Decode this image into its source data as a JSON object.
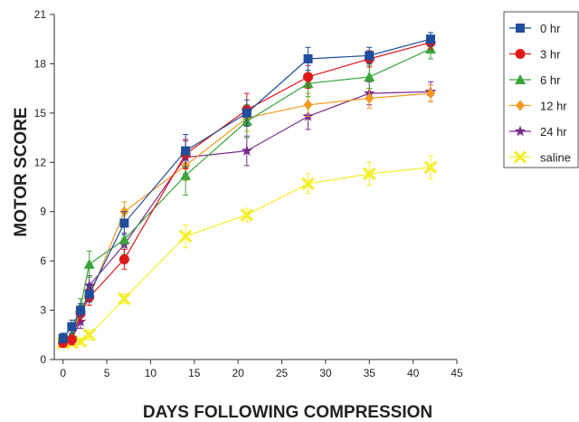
{
  "chart_data": {
    "type": "line",
    "xlabel": "DAYS FOLLOWING COMPRESSION",
    "ylabel": "MOTOR SCORE",
    "xlim": [
      -1,
      45
    ],
    "ylim": [
      0,
      21
    ],
    "xticks": [
      0,
      5,
      10,
      15,
      20,
      25,
      30,
      35,
      40,
      45
    ],
    "yticks": [
      0,
      3,
      6,
      9,
      12,
      15,
      18,
      21
    ],
    "grid": false,
    "legend_position": "top-right",
    "series": [
      {
        "name": "0 hr",
        "color": "#1f4e9c",
        "marker": "square",
        "x": [
          0,
          1,
          2,
          3,
          7,
          14,
          21,
          28,
          35,
          42
        ],
        "y": [
          1.3,
          2.0,
          3.0,
          4.0,
          8.3,
          12.7,
          15.0,
          18.3,
          18.5,
          19.5
        ],
        "err": [
          0.3,
          0.4,
          0.4,
          0.5,
          0.7,
          1.0,
          0.8,
          0.7,
          0.5,
          0.4
        ]
      },
      {
        "name": "3 hr",
        "color": "#e01818",
        "marker": "circle",
        "x": [
          0,
          1,
          2,
          3,
          7,
          14,
          21,
          28,
          35,
          42
        ],
        "y": [
          1.0,
          1.2,
          2.8,
          3.8,
          6.1,
          12.5,
          15.2,
          17.2,
          18.3,
          19.3
        ],
        "err": [
          0.2,
          0.3,
          0.4,
          0.5,
          0.6,
          0.9,
          1.0,
          0.7,
          0.5,
          0.4
        ]
      },
      {
        "name": "6 hr",
        "color": "#3aa53a",
        "marker": "triangle",
        "x": [
          0,
          1,
          2,
          3,
          7,
          14,
          21,
          28,
          35,
          42
        ],
        "y": [
          1.2,
          1.5,
          3.2,
          5.8,
          7.3,
          11.2,
          14.5,
          16.8,
          17.2,
          18.9
        ],
        "err": [
          0.3,
          0.3,
          0.5,
          0.8,
          0.9,
          1.2,
          1.0,
          0.8,
          0.7,
          0.6
        ]
      },
      {
        "name": "12 hr",
        "color": "#f39a1e",
        "marker": "diamond",
        "x": [
          0,
          1,
          2,
          3,
          7,
          14,
          21,
          28,
          35,
          42
        ],
        "y": [
          1.0,
          1.3,
          3.0,
          3.8,
          9.0,
          11.8,
          14.7,
          15.5,
          15.9,
          16.2
        ],
        "err": [
          0.2,
          0.3,
          0.4,
          0.5,
          0.6,
          0.9,
          0.8,
          0.7,
          0.6,
          0.5
        ]
      },
      {
        "name": "24 hr",
        "color": "#7a2a8e",
        "marker": "star",
        "x": [
          0,
          1,
          2,
          3,
          7,
          14,
          21,
          28,
          35,
          42
        ],
        "y": [
          1.0,
          1.3,
          2.3,
          4.5,
          7.0,
          12.3,
          12.7,
          14.8,
          16.2,
          16.3
        ],
        "err": [
          0.2,
          0.3,
          0.4,
          0.6,
          0.7,
          1.0,
          0.9,
          0.8,
          0.7,
          0.6
        ]
      },
      {
        "name": "saline",
        "color": "#f5ee2a",
        "marker": "x",
        "x": [
          0,
          1,
          2,
          3,
          7,
          14,
          21,
          28,
          35,
          42
        ],
        "y": [
          1.0,
          1.0,
          1.1,
          1.5,
          3.7,
          7.5,
          8.8,
          10.7,
          11.3,
          11.7
        ],
        "err": [
          0.2,
          0.2,
          0.2,
          0.3,
          0.3,
          0.7,
          0.4,
          0.6,
          0.7,
          0.7
        ]
      }
    ]
  }
}
